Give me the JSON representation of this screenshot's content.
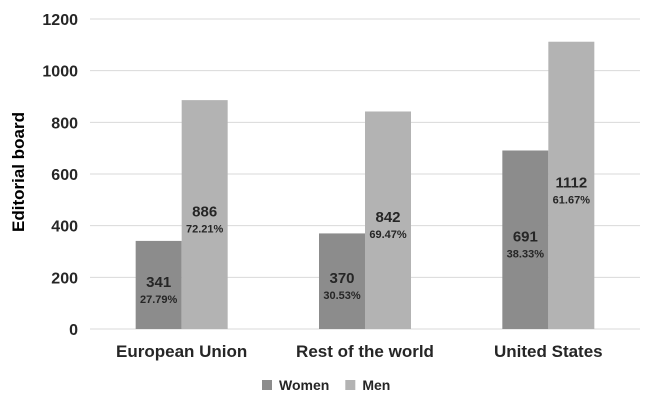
{
  "chart_data": {
    "type": "bar",
    "ylabel": "Editorial board",
    "ylim": [
      0,
      1200
    ],
    "yticks": [
      0,
      200,
      400,
      600,
      800,
      1000,
      1200
    ],
    "grid": true,
    "legend_position": "bottom",
    "categories": [
      "European Union",
      "Rest of the world",
      "United States"
    ],
    "series": [
      {
        "name": "Women",
        "color": "#8c8c8c",
        "values": [
          341,
          370,
          691
        ],
        "labels": [
          "27.79%",
          "30.53%",
          "38.33%"
        ]
      },
      {
        "name": "Men",
        "color": "#b3b3b3",
        "values": [
          886,
          842,
          1112
        ],
        "labels": [
          "72.21%",
          "69.47%",
          "61.67%"
        ]
      }
    ]
  }
}
